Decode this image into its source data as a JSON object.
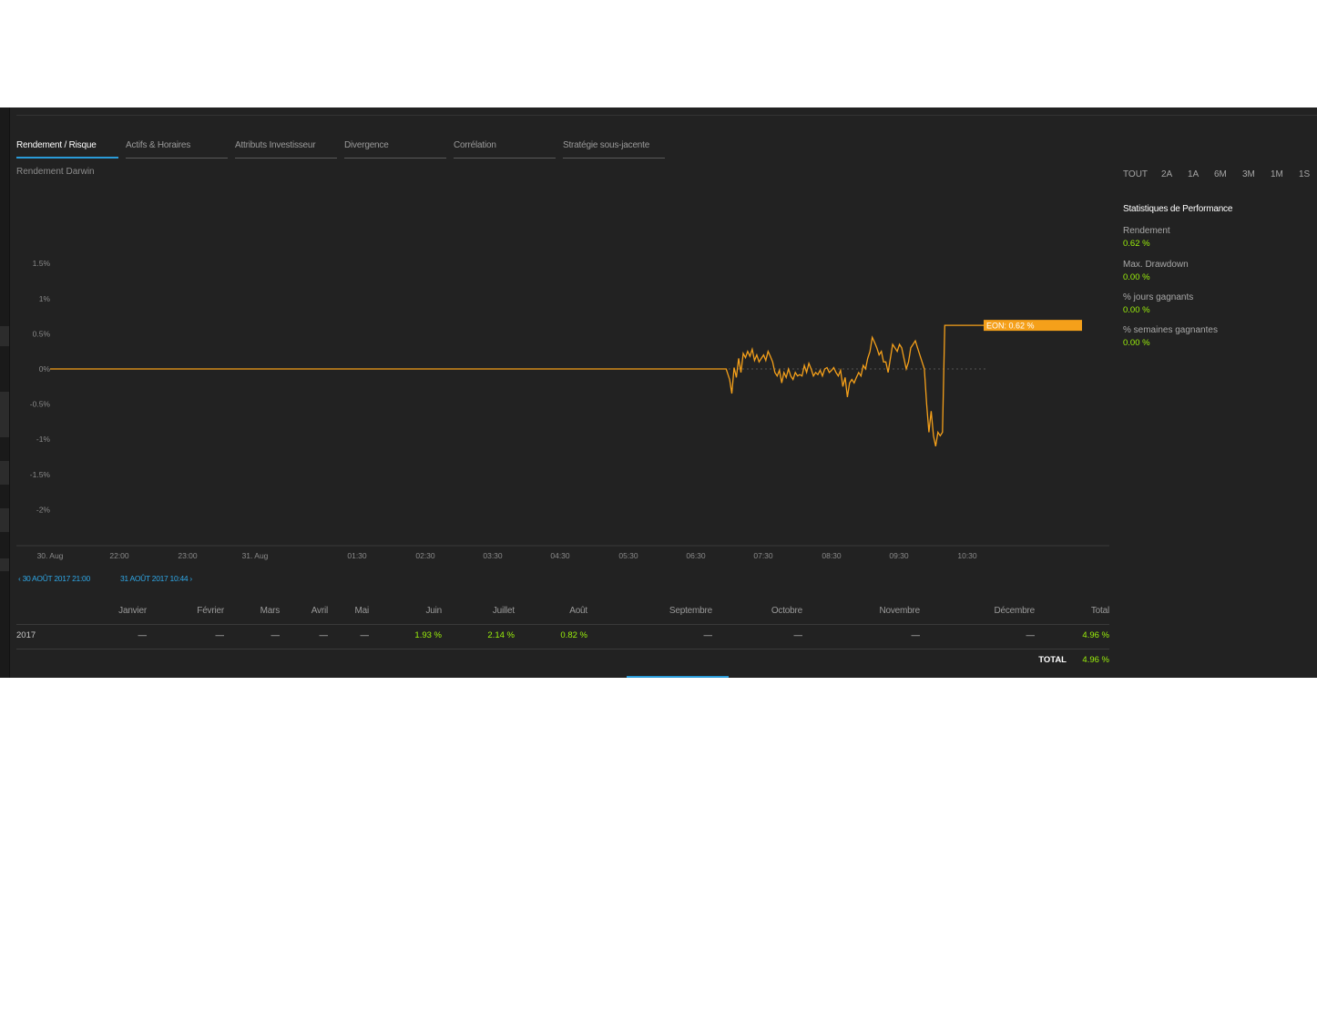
{
  "tabs": [
    {
      "label": "Rendement / Risque",
      "active": true
    },
    {
      "label": "Actifs & Horaires"
    },
    {
      "label": "Attributs Investisseur"
    },
    {
      "label": "Divergence"
    },
    {
      "label": "Corrélation"
    },
    {
      "label": "Stratégie sous-jacente"
    }
  ],
  "chart_title": "Rendement Darwin",
  "ranges": [
    "TOUT",
    "2A",
    "1A",
    "6M",
    "3M",
    "1M",
    "1S"
  ],
  "perf": {
    "title": "Statistiques de Performance",
    "stats": [
      {
        "label": "Rendement",
        "value": "0.62 %"
      },
      {
        "label": "Max. Drawdown",
        "value": "0.00 %"
      },
      {
        "label": "% jours gagnants",
        "value": "0.00 %"
      },
      {
        "label": "% semaines gagnantes",
        "value": "0.00 %"
      }
    ]
  },
  "nav": {
    "from": "30 AOÛT 2017 21:00",
    "to": "31 AOÛT 2017 10:44"
  },
  "monthly": {
    "headers": [
      "Janvier",
      "Février",
      "Mars",
      "Avril",
      "Mai",
      "Juin",
      "Juillet",
      "Août",
      "Septembre",
      "Octobre",
      "Novembre",
      "Décembre",
      "Total"
    ],
    "year": "2017",
    "values": [
      "—",
      "—",
      "—",
      "—",
      "—",
      "1.93 %",
      "2.14 %",
      "0.82 %",
      "—",
      "—",
      "—",
      "—",
      "4.96 %"
    ],
    "total_label": "TOTAL",
    "total_value": "4.96 %"
  },
  "colors": {
    "line": "#f5a01a",
    "positive": "#9bf00b",
    "accent": "#2a9bd8"
  },
  "chart_data": {
    "type": "line",
    "y_ticks": [
      "1.5%",
      "1%",
      "0.5%",
      "0%",
      "-0.5%",
      "-1%",
      "-1.5%",
      "-2%"
    ],
    "ylim": [
      -2,
      1.5
    ],
    "x_ticks": [
      "30. Aug",
      "22:00",
      "23:00",
      "31. Aug",
      "01:30",
      "02:30",
      "03:30",
      "04:30",
      "05:30",
      "06:30",
      "07:30",
      "08:30",
      "09:30",
      "10:30"
    ],
    "series": [
      {
        "name": "EON",
        "label": "EON: 0.62 %",
        "points": [
          [
            "30. Aug 21:00",
            0
          ],
          [
            "31. Aug 06:56",
            0
          ],
          [
            "06:59",
            -0.15
          ],
          [
            "07:01",
            -0.35
          ],
          [
            "07:03",
            0.02
          ],
          [
            "07:05",
            -0.12
          ],
          [
            "07:07",
            0.15
          ],
          [
            "07:09",
            -0.05
          ],
          [
            "07:11",
            0.22
          ],
          [
            "07:13",
            0.16
          ],
          [
            "07:15",
            0.25
          ],
          [
            "07:17",
            0.18
          ],
          [
            "07:19",
            0.28
          ],
          [
            "07:21",
            0.12
          ],
          [
            "07:23",
            0.2
          ],
          [
            "07:25",
            0.1
          ],
          [
            "07:27",
            0.15
          ],
          [
            "07:29",
            0.2
          ],
          [
            "07:31",
            0.12
          ],
          [
            "07:33",
            0.25
          ],
          [
            "07:35",
            0.18
          ],
          [
            "07:37",
            0.1
          ],
          [
            "07:39",
            -0.05
          ],
          [
            "07:41",
            -0.1
          ],
          [
            "07:43",
            -0.02
          ],
          [
            "07:45",
            -0.2
          ],
          [
            "07:47",
            -0.05
          ],
          [
            "07:49",
            -0.12
          ],
          [
            "07:51",
            0
          ],
          [
            "07:53",
            -0.1
          ],
          [
            "07:55",
            -0.15
          ],
          [
            "07:57",
            -0.05
          ],
          [
            "07:59",
            -0.1
          ],
          [
            "08:01",
            -0.08
          ],
          [
            "08:03",
            -0.1
          ],
          [
            "08:05",
            0.05
          ],
          [
            "08:07",
            -0.05
          ],
          [
            "08:09",
            0.08
          ],
          [
            "08:11",
            0
          ],
          [
            "08:13",
            -0.1
          ],
          [
            "08:15",
            -0.05
          ],
          [
            "08:17",
            -0.08
          ],
          [
            "08:19",
            -0.02
          ],
          [
            "08:21",
            -0.1
          ],
          [
            "08:23",
            0
          ],
          [
            "08:25",
            0.02
          ],
          [
            "08:27",
            -0.05
          ],
          [
            "08:29",
            -0.02
          ],
          [
            "08:31",
            0.02
          ],
          [
            "08:33",
            -0.05
          ],
          [
            "08:35",
            -0.1
          ],
          [
            "08:37",
            -0.02
          ],
          [
            "08:39",
            -0.25
          ],
          [
            "08:41",
            -0.12
          ],
          [
            "08:43",
            -0.4
          ],
          [
            "08:45",
            -0.2
          ],
          [
            "08:47",
            -0.15
          ],
          [
            "08:49",
            -0.2
          ],
          [
            "08:51",
            -0.12
          ],
          [
            "08:53",
            -0.05
          ],
          [
            "08:55",
            -0.1
          ],
          [
            "08:57",
            0.05
          ],
          [
            "08:59",
            0
          ],
          [
            "09:01",
            0.15
          ],
          [
            "09:03",
            0.25
          ],
          [
            "09:05",
            0.45
          ],
          [
            "09:07",
            0.38
          ],
          [
            "09:09",
            0.3
          ],
          [
            "09:11",
            0.2
          ],
          [
            "09:13",
            0.25
          ],
          [
            "09:15",
            0.1
          ],
          [
            "09:17",
            0.1
          ],
          [
            "09:19",
            -0.05
          ],
          [
            "09:21",
            0.15
          ],
          [
            "09:23",
            0.35
          ],
          [
            "09:25",
            0.3
          ],
          [
            "09:27",
            0.25
          ],
          [
            "09:29",
            0.35
          ],
          [
            "09:31",
            0.3
          ],
          [
            "09:33",
            0.15
          ],
          [
            "09:35",
            0
          ],
          [
            "09:37",
            0.1
          ],
          [
            "09:39",
            0.3
          ],
          [
            "09:41",
            0.35
          ],
          [
            "09:43",
            0.4
          ],
          [
            "09:45",
            0.3
          ],
          [
            "09:47",
            0.2
          ],
          [
            "09:49",
            0.1
          ],
          [
            "09:51",
            0
          ],
          [
            "09:53",
            -0.5
          ],
          [
            "09:55",
            -0.9
          ],
          [
            "09:57",
            -0.6
          ],
          [
            "09:59",
            -0.95
          ],
          [
            "10:01",
            -1.1
          ],
          [
            "10:03",
            -0.9
          ],
          [
            "10:05",
            -0.95
          ],
          [
            "10:07",
            -0.9
          ],
          [
            "10:09",
            0.62
          ],
          [
            "10:44",
            0.62
          ]
        ]
      }
    ]
  }
}
